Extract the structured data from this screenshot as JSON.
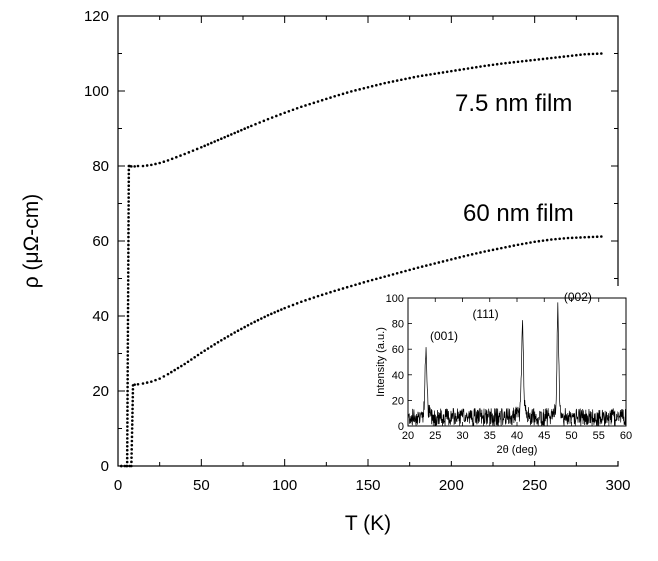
{
  "chart_data": [
    {
      "type": "scatter",
      "title": "",
      "xlabel": "T (K)",
      "ylabel": "ρ (μΩ-cm)",
      "xlim": [
        0,
        300
      ],
      "ylim": [
        0,
        120
      ],
      "xticks": [
        0,
        50,
        100,
        150,
        200,
        250,
        300
      ],
      "yticks": [
        0,
        20,
        40,
        60,
        80,
        100,
        120
      ],
      "grid": false,
      "annotations": [
        "7.5 nm film",
        "60 nm film"
      ],
      "series": [
        {
          "name": "7.5 nm film",
          "x": [
            2,
            4,
            5.5,
            6,
            6.5,
            7,
            8,
            10,
            12,
            15,
            20,
            25,
            30,
            40,
            50,
            60,
            70,
            80,
            90,
            100,
            110,
            120,
            130,
            140,
            150,
            160,
            170,
            180,
            190,
            200,
            210,
            220,
            230,
            240,
            250,
            260,
            270,
            280,
            290
          ],
          "y": [
            0,
            0,
            0,
            40,
            80,
            80,
            79.9,
            79.9,
            80,
            80,
            80.3,
            80.8,
            81.5,
            83.2,
            85,
            86.9,
            88.8,
            90.7,
            92.5,
            94.2,
            95.8,
            97.2,
            98.6,
            99.9,
            101,
            102.1,
            103,
            103.9,
            104.6,
            105.3,
            106,
            106.7,
            107.3,
            107.8,
            108.3,
            108.8,
            109.3,
            109.8,
            110
          ]
        },
        {
          "name": "60 nm film",
          "x": [
            2,
            5,
            7,
            8,
            8.5,
            9,
            10,
            12,
            15,
            20,
            25,
            30,
            40,
            50,
            60,
            70,
            80,
            90,
            100,
            110,
            120,
            130,
            140,
            150,
            160,
            170,
            180,
            190,
            200,
            210,
            220,
            230,
            240,
            250,
            260,
            270,
            280,
            290
          ],
          "y": [
            0,
            0,
            0,
            0,
            10,
            21.5,
            21.7,
            21.8,
            22,
            22.5,
            23.3,
            24.5,
            27.2,
            30.2,
            33,
            35.6,
            38,
            40.2,
            42.1,
            43.8,
            45.3,
            46.7,
            48,
            49.3,
            50.5,
            51.7,
            52.9,
            54,
            55.1,
            56.2,
            57.2,
            58.1,
            59,
            59.8,
            60.4,
            60.8,
            61,
            61.2
          ]
        }
      ]
    },
    {
      "type": "line",
      "title": "",
      "xlabel": "2θ (deg)",
      "ylabel": "Intensity (a.u.)",
      "xlim": [
        20,
        60
      ],
      "ylim": [
        0,
        100
      ],
      "xticks": [
        20,
        25,
        30,
        35,
        40,
        45,
        50,
        55,
        60
      ],
      "yticks": [
        0,
        20,
        40,
        60,
        80,
        100
      ],
      "grid": false,
      "background_level": 7,
      "noise_amplitude": 7,
      "peaks": [
        {
          "label": "(001)",
          "x": 23.3,
          "y": 58,
          "width": 0.22
        },
        {
          "label": "(111)",
          "x": 41,
          "y": 75,
          "width": 0.25
        },
        {
          "label": "(002)",
          "x": 47.5,
          "y": 90,
          "width": 0.22
        }
      ]
    }
  ]
}
